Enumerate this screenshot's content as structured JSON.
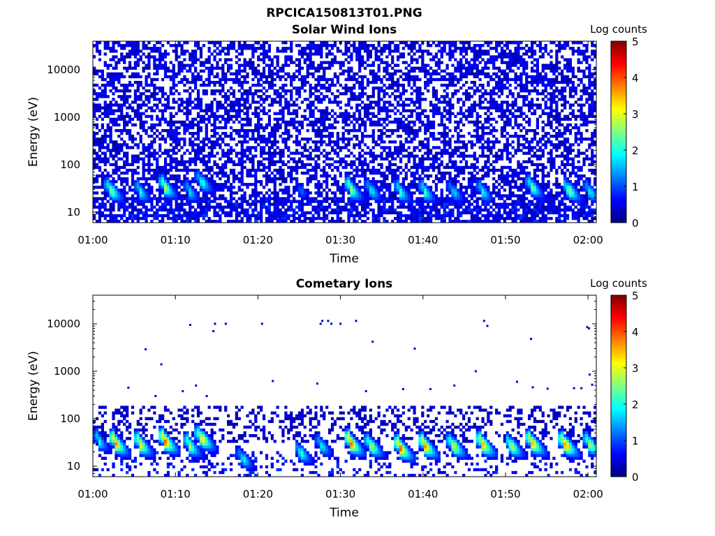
{
  "figure": {
    "title": "RPCICA150813T01.PNG"
  },
  "chart_data": [
    {
      "type": "heatmap",
      "title": "Solar Wind Ions",
      "xlabel": "Time",
      "ylabel": "Energy (eV)",
      "x_tick_labels": [
        "01:00",
        "01:10",
        "01:20",
        "01:30",
        "01:40",
        "01:50",
        "02:00"
      ],
      "x_range": [
        "01:00",
        "02:01"
      ],
      "y_scale": "log",
      "y_tick_values": [
        10,
        100,
        1000,
        10000
      ],
      "y_tick_labels": [
        "10",
        "100",
        "1000",
        "10000"
      ],
      "y_range": [
        6,
        40000
      ],
      "colorbar": {
        "label": "Log counts",
        "ticks": [
          "0",
          "1",
          "2",
          "3",
          "4",
          "5"
        ],
        "range": [
          0,
          5
        ],
        "colormap": "jet"
      },
      "background_noise": {
        "energy_min_eV": 6,
        "energy_max_eV": 40000,
        "log_counts": 0.2,
        "fill_fraction": 0.55
      },
      "ion_bursts": [
        {
          "time_min": 2.0,
          "peak_energy_eV": 30,
          "peak_log_counts": 2.7
        },
        {
          "time_min": 5.5,
          "peak_energy_eV": 28,
          "peak_log_counts": 2.0
        },
        {
          "time_min": 8.5,
          "peak_energy_eV": 35,
          "peak_log_counts": 2.8
        },
        {
          "time_min": 11.5,
          "peak_energy_eV": 28,
          "peak_log_counts": 1.8
        },
        {
          "time_min": 13.0,
          "peak_energy_eV": 45,
          "peak_log_counts": 2.2
        },
        {
          "time_min": 25.0,
          "peak_energy_eV": 30,
          "peak_log_counts": 1.2
        },
        {
          "time_min": 31.0,
          "peak_energy_eV": 32,
          "peak_log_counts": 2.8
        },
        {
          "time_min": 33.5,
          "peak_energy_eV": 30,
          "peak_log_counts": 2.0
        },
        {
          "time_min": 37.0,
          "peak_energy_eV": 28,
          "peak_log_counts": 2.2
        },
        {
          "time_min": 40.0,
          "peak_energy_eV": 28,
          "peak_log_counts": 2.2
        },
        {
          "time_min": 43.5,
          "peak_energy_eV": 28,
          "peak_log_counts": 1.8
        },
        {
          "time_min": 47.0,
          "peak_energy_eV": 28,
          "peak_log_counts": 2.0
        },
        {
          "time_min": 53.0,
          "peak_energy_eV": 35,
          "peak_log_counts": 2.5
        },
        {
          "time_min": 57.5,
          "peak_energy_eV": 30,
          "peak_log_counts": 2.7
        },
        {
          "time_min": 60.0,
          "peak_energy_eV": 28,
          "peak_log_counts": 2.0
        }
      ]
    },
    {
      "type": "heatmap",
      "title": "Cometary Ions",
      "xlabel": "Time",
      "ylabel": "Energy (eV)",
      "x_tick_labels": [
        "01:00",
        "01:10",
        "01:20",
        "01:30",
        "01:40",
        "01:50",
        "02:00"
      ],
      "x_range": [
        "01:00",
        "02:01"
      ],
      "y_scale": "log",
      "y_tick_values": [
        10,
        100,
        1000,
        10000
      ],
      "y_tick_labels": [
        "10",
        "100",
        "1000",
        "10000"
      ],
      "y_range": [
        6,
        40000
      ],
      "colorbar": {
        "label": "Log counts",
        "ticks": [
          "0",
          "1",
          "2",
          "3",
          "4",
          "5"
        ],
        "range": [
          0,
          5
        ],
        "colormap": "jet"
      },
      "background_noise": {
        "energy_min_eV": 30,
        "energy_max_eV": 200,
        "log_counts": 0.2,
        "fill_fraction": 0.3
      },
      "ion_bursts": [
        {
          "time_min": 0.5,
          "peak_energy_eV": 35,
          "peak_log_counts": 2.0
        },
        {
          "time_min": 2.5,
          "peak_energy_eV": 32,
          "peak_log_counts": 3.8
        },
        {
          "time_min": 5.5,
          "peak_energy_eV": 30,
          "peak_log_counts": 3.3
        },
        {
          "time_min": 8.5,
          "peak_energy_eV": 35,
          "peak_log_counts": 4.0
        },
        {
          "time_min": 11.5,
          "peak_energy_eV": 28,
          "peak_log_counts": 2.8
        },
        {
          "time_min": 13.0,
          "peak_energy_eV": 40,
          "peak_log_counts": 3.5
        },
        {
          "time_min": 18.0,
          "peak_energy_eV": 15,
          "peak_log_counts": 2.0
        },
        {
          "time_min": 25.0,
          "peak_energy_eV": 20,
          "peak_log_counts": 2.2
        },
        {
          "time_min": 27.5,
          "peak_energy_eV": 28,
          "peak_log_counts": 2.0
        },
        {
          "time_min": 31.0,
          "peak_energy_eV": 32,
          "peak_log_counts": 4.0
        },
        {
          "time_min": 33.5,
          "peak_energy_eV": 28,
          "peak_log_counts": 3.0
        },
        {
          "time_min": 37.0,
          "peak_energy_eV": 25,
          "peak_log_counts": 4.0
        },
        {
          "time_min": 40.0,
          "peak_energy_eV": 28,
          "peak_log_counts": 3.8
        },
        {
          "time_min": 43.5,
          "peak_energy_eV": 28,
          "peak_log_counts": 3.2
        },
        {
          "time_min": 47.0,
          "peak_energy_eV": 30,
          "peak_log_counts": 3.7
        },
        {
          "time_min": 50.5,
          "peak_energy_eV": 28,
          "peak_log_counts": 3.0
        },
        {
          "time_min": 53.0,
          "peak_energy_eV": 32,
          "peak_log_counts": 3.8
        },
        {
          "time_min": 57.0,
          "peak_energy_eV": 30,
          "peak_log_counts": 4.0
        },
        {
          "time_min": 60.0,
          "peak_energy_eV": 30,
          "peak_log_counts": 3.0
        }
      ],
      "sparse_points": [
        {
          "time_min": 11.8,
          "energy_eV": 9500
        },
        {
          "time_min": 14.6,
          "energy_eV": 7000
        },
        {
          "time_min": 14.8,
          "energy_eV": 10000
        },
        {
          "time_min": 16.1,
          "energy_eV": 10000
        },
        {
          "time_min": 20.5,
          "energy_eV": 10000
        },
        {
          "time_min": 27.6,
          "energy_eV": 10000
        },
        {
          "time_min": 27.8,
          "energy_eV": 11500
        },
        {
          "time_min": 28.5,
          "energy_eV": 11500
        },
        {
          "time_min": 28.9,
          "energy_eV": 10000
        },
        {
          "time_min": 30.0,
          "energy_eV": 10000
        },
        {
          "time_min": 31.9,
          "energy_eV": 11500
        },
        {
          "time_min": 47.4,
          "energy_eV": 11500
        },
        {
          "time_min": 47.8,
          "energy_eV": 9000
        },
        {
          "time_min": 59.9,
          "energy_eV": 8500
        },
        {
          "time_min": 60.1,
          "energy_eV": 8000
        },
        {
          "time_min": 6.4,
          "energy_eV": 2900
        },
        {
          "time_min": 8.3,
          "energy_eV": 1400
        },
        {
          "time_min": 33.9,
          "energy_eV": 4200
        },
        {
          "time_min": 39.0,
          "energy_eV": 3000
        },
        {
          "time_min": 46.4,
          "energy_eV": 1000
        },
        {
          "time_min": 53.1,
          "energy_eV": 4800
        },
        {
          "time_min": 60.2,
          "energy_eV": 850
        },
        {
          "time_min": 4.3,
          "energy_eV": 450
        },
        {
          "time_min": 7.6,
          "energy_eV": 300
        },
        {
          "time_min": 10.9,
          "energy_eV": 380
        },
        {
          "time_min": 12.5,
          "energy_eV": 500
        },
        {
          "time_min": 13.8,
          "energy_eV": 300
        },
        {
          "time_min": 21.8,
          "energy_eV": 620
        },
        {
          "time_min": 27.2,
          "energy_eV": 550
        },
        {
          "time_min": 33.1,
          "energy_eV": 380
        },
        {
          "time_min": 37.6,
          "energy_eV": 420
        },
        {
          "time_min": 40.9,
          "energy_eV": 420
        },
        {
          "time_min": 43.8,
          "energy_eV": 500
        },
        {
          "time_min": 51.4,
          "energy_eV": 600
        },
        {
          "time_min": 53.3,
          "energy_eV": 460
        },
        {
          "time_min": 55.1,
          "energy_eV": 430
        },
        {
          "time_min": 58.3,
          "energy_eV": 440
        },
        {
          "time_min": 59.2,
          "energy_eV": 440
        },
        {
          "time_min": 60.5,
          "energy_eV": 520
        }
      ]
    }
  ]
}
